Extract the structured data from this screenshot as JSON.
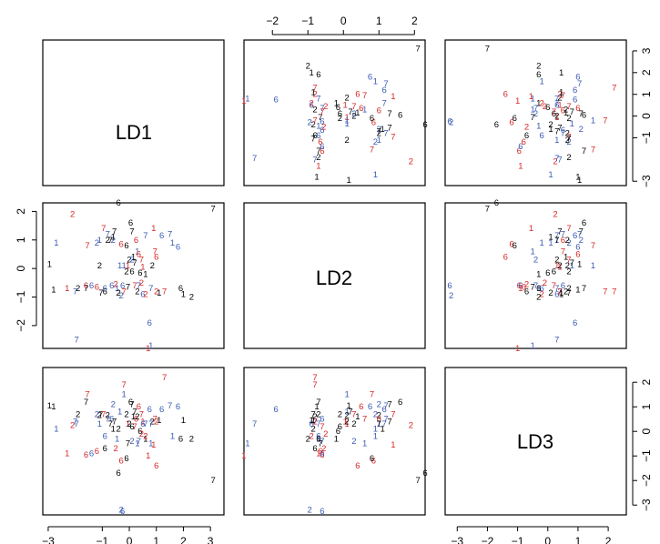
{
  "chart_data": {
    "type": "scatter",
    "variables": [
      "LD1",
      "LD2",
      "LD3"
    ],
    "colors": {
      "1": "#000000",
      "2": "#d62728",
      "3": "#3b5bb3"
    },
    "tick_labels": {
      "bottom_left": [
        "−3",
        "−1",
        "0",
        "1",
        "2",
        "3"
      ],
      "bottom_right": [
        "−3",
        "−2",
        "−1",
        "0",
        "1",
        "2"
      ],
      "top_middle": [
        "−2",
        "−1",
        "0",
        "1",
        "2"
      ],
      "left_middle": [
        "−2",
        "−1",
        "0",
        "1",
        "2"
      ],
      "right_top": [
        "−3",
        "−1",
        "0",
        "1",
        "2",
        "3"
      ],
      "right_bottom": [
        "−3",
        "−2",
        "−1",
        "0",
        "1",
        "2"
      ]
    },
    "ranges": {
      "LD1": [
        -3.2,
        3.5
      ],
      "LD2": [
        -2.8,
        2.3
      ],
      "LD3": [
        -3.4,
        2.6
      ]
    },
    "points": [
      {
        "label": "1",
        "c": 1,
        "LD1": -2.95,
        "LD2": 0.15,
        "LD3": 1.05
      },
      {
        "label": "1",
        "c": 1,
        "LD1": -2.8,
        "LD2": -0.75,
        "LD3": 1.0
      },
      {
        "label": "1",
        "c": 2,
        "LD1": -2.3,
        "LD2": -0.7,
        "LD3": -0.9
      },
      {
        "label": "1",
        "c": 3,
        "LD1": -2.7,
        "LD2": 0.9,
        "LD3": 0.1
      },
      {
        "label": "2",
        "c": 2,
        "LD1": -2.1,
        "LD2": 1.9,
        "LD3": 0.25
      },
      {
        "label": "2",
        "c": 1,
        "LD1": -1.9,
        "LD2": -0.7,
        "LD3": 0.7
      },
      {
        "label": "7",
        "c": 3,
        "LD1": -1.95,
        "LD2": -2.5,
        "LD3": 0.3
      },
      {
        "label": "7",
        "c": 3,
        "LD1": -2.0,
        "LD2": -0.8,
        "LD3": 0.4
      },
      {
        "label": "6",
        "c": 2,
        "LD1": -1.6,
        "LD2": -0.6,
        "LD3": -0.95
      },
      {
        "label": "6",
        "c": 3,
        "LD1": -1.4,
        "LD2": -0.6,
        "LD3": -0.9
      },
      {
        "label": "2",
        "c": 3,
        "LD1": -1.2,
        "LD2": 0.9,
        "LD3": 0.7
      },
      {
        "label": "7",
        "c": 2,
        "LD1": -1.55,
        "LD2": 0.8,
        "LD3": 1.5
      },
      {
        "label": "1",
        "c": 3,
        "LD1": -1.1,
        "LD2": 1.0,
        "LD3": 0.3
      },
      {
        "label": "7",
        "c": 1,
        "LD1": -1.05,
        "LD2": -0.85,
        "LD3": 0.7
      },
      {
        "label": "6",
        "c": 1,
        "LD1": -0.9,
        "LD2": -0.8,
        "LD3": -0.7
      },
      {
        "label": "7",
        "c": 2,
        "LD1": -0.95,
        "LD2": 1.4,
        "LD3": 0.7
      },
      {
        "label": "7",
        "c": 3,
        "LD1": -0.8,
        "LD2": 1.2,
        "LD3": 0.5
      },
      {
        "label": "2",
        "c": 1,
        "LD1": -0.8,
        "LD2": 1.0,
        "LD3": 0.65
      },
      {
        "label": "1",
        "c": 1,
        "LD1": -0.6,
        "LD2": 1.1,
        "LD3": 0.1
      },
      {
        "label": "6",
        "c": 3,
        "LD1": -0.65,
        "LD2": -0.6,
        "LD3": 0.5
      },
      {
        "label": "2",
        "c": 3,
        "LD1": -0.6,
        "LD2": 1.0,
        "LD3": 1.1
      },
      {
        "label": "6",
        "c": 3,
        "LD1": -0.9,
        "LD2": -0.7,
        "LD3": -0.2
      },
      {
        "label": "2",
        "c": 2,
        "LD1": -0.5,
        "LD2": -0.55,
        "LD3": -0.7
      },
      {
        "label": "1",
        "c": 3,
        "LD1": -0.45,
        "LD2": -0.7,
        "LD3": -0.3
      },
      {
        "label": "6",
        "c": 1,
        "LD1": -0.4,
        "LD2": 2.3,
        "LD3": -1.7
      },
      {
        "label": "2",
        "c": 1,
        "LD1": -0.4,
        "LD2": -0.85,
        "LD3": 0.1
      },
      {
        "label": "7",
        "c": 1,
        "LD1": -0.55,
        "LD2": 1.3,
        "LD3": 0.4
      },
      {
        "label": "1",
        "c": 3,
        "LD1": -0.35,
        "LD2": 0.1,
        "LD3": 0.8
      },
      {
        "label": "2",
        "c": 3,
        "LD1": -0.3,
        "LD2": -0.95,
        "LD3": -3.2
      },
      {
        "label": "6",
        "c": 3,
        "LD1": -0.25,
        "LD2": -0.6,
        "LD3": -3.25
      },
      {
        "label": "7",
        "c": 2,
        "LD1": -0.2,
        "LD2": -0.8,
        "LD3": 1.9
      },
      {
        "label": "6",
        "c": 2,
        "LD1": -0.3,
        "LD2": 0.85,
        "LD3": -1.2
      },
      {
        "label": "6",
        "c": 1,
        "LD1": -0.1,
        "LD2": 0.8,
        "LD3": -1.1
      },
      {
        "label": "7",
        "c": 1,
        "LD1": -0.05,
        "LD2": -0.65,
        "LD3": -0.5
      },
      {
        "label": "2",
        "c": 1,
        "LD1": -0.1,
        "LD2": -0.1,
        "LD3": 0.7
      },
      {
        "label": "1",
        "c": 2,
        "LD1": -0.05,
        "LD2": 0.1,
        "LD3": 0.3
      },
      {
        "label": "6",
        "c": 1,
        "LD1": 0.05,
        "LD2": 1.6,
        "LD3": 1.2
      },
      {
        "label": "7",
        "c": 1,
        "LD1": 0.1,
        "LD2": 1.3,
        "LD3": 1.1
      },
      {
        "label": "2",
        "c": 1,
        "LD1": 0.0,
        "LD2": 0.3,
        "LD3": 0.3
      },
      {
        "label": "1",
        "c": 1,
        "LD1": 0.15,
        "LD2": 0.4,
        "LD3": 0.6
      },
      {
        "label": "6",
        "c": 1,
        "LD1": 0.1,
        "LD2": -0.1,
        "LD3": 0.2
      },
      {
        "label": "7",
        "c": 1,
        "LD1": 0.2,
        "LD2": 0.2,
        "LD3": 0.8
      },
      {
        "label": "7",
        "c": 2,
        "LD1": 0.2,
        "LD2": -0.6,
        "LD3": 0.2
      },
      {
        "label": "6",
        "c": 2,
        "LD1": 0.25,
        "LD2": 1.0,
        "LD3": 0.5
      },
      {
        "label": "1",
        "c": 3,
        "LD1": 0.3,
        "LD2": 0.6,
        "LD3": -0.5
      },
      {
        "label": "2",
        "c": 1,
        "LD1": 0.3,
        "LD2": -0.8,
        "LD3": 0.6
      },
      {
        "label": "7",
        "c": 3,
        "LD1": 0.35,
        "LD2": -0.6,
        "LD3": -0.4
      },
      {
        "label": "6",
        "c": 1,
        "LD1": 0.4,
        "LD2": -0.15,
        "LD3": 0.0
      },
      {
        "label": "2",
        "c": 2,
        "LD1": 0.45,
        "LD2": -0.5,
        "LD3": -0.1
      },
      {
        "label": "7",
        "c": 2,
        "LD1": 0.45,
        "LD2": 0.3,
        "LD3": 0.7
      },
      {
        "label": "1",
        "c": 2,
        "LD1": 0.5,
        "LD2": 0.05,
        "LD3": 0.4
      },
      {
        "label": "6",
        "c": 3,
        "LD1": 0.5,
        "LD2": -0.9,
        "LD3": 0.3
      },
      {
        "label": "6",
        "c": 2,
        "LD1": 0.35,
        "LD2": 0.5,
        "LD3": 1.0
      },
      {
        "label": "1",
        "c": 1,
        "LD1": 0.6,
        "LD2": -0.2,
        "LD3": -0.3
      },
      {
        "label": "2",
        "c": 2,
        "LD1": 0.6,
        "LD2": -0.9,
        "LD3": -0.2
      },
      {
        "label": "7",
        "c": 3,
        "LD1": 0.6,
        "LD2": 1.15,
        "LD3": 0.3
      },
      {
        "label": "1",
        "c": 2,
        "LD1": 0.7,
        "LD2": -2.8,
        "LD3": -1.0
      },
      {
        "label": "6",
        "c": 3,
        "LD1": 0.75,
        "LD2": -1.9,
        "LD3": 0.9
      },
      {
        "label": "1",
        "c": 3,
        "LD1": 0.8,
        "LD2": -2.7,
        "LD3": -0.5
      },
      {
        "label": "2",
        "c": 1,
        "LD1": 0.85,
        "LD2": 0.1,
        "LD3": 0.4
      },
      {
        "label": "1",
        "c": 2,
        "LD1": 0.9,
        "LD2": 1.4,
        "LD3": -0.55
      },
      {
        "label": "7",
        "c": 2,
        "LD1": 0.95,
        "LD2": 0.6,
        "LD3": 0.5
      },
      {
        "label": "6",
        "c": 2,
        "LD1": 1.0,
        "LD2": 0.4,
        "LD3": -1.4
      },
      {
        "label": "2",
        "c": 2,
        "LD1": 1.0,
        "LD2": -0.8,
        "LD3": 0.4
      },
      {
        "label": "1",
        "c": 1,
        "LD1": 1.1,
        "LD2": -0.85,
        "LD3": 0.45
      },
      {
        "label": "6",
        "c": 3,
        "LD1": 1.2,
        "LD2": 1.15,
        "LD3": 0.9
      },
      {
        "label": "7",
        "c": 3,
        "LD1": 1.5,
        "LD2": 1.2,
        "LD3": 1.05
      },
      {
        "label": "1",
        "c": 3,
        "LD1": 1.6,
        "LD2": 0.9,
        "LD3": -0.2
      },
      {
        "label": "7",
        "c": 2,
        "LD1": 1.3,
        "LD2": -0.8,
        "LD3": 2.2
      },
      {
        "label": "6",
        "c": 3,
        "LD1": 1.8,
        "LD2": 0.75,
        "LD3": 1.0
      },
      {
        "label": "2",
        "c": 1,
        "LD1": 2.3,
        "LD2": -1.0,
        "LD3": -0.3
      },
      {
        "label": "1",
        "c": 1,
        "LD1": 2.0,
        "LD2": -0.9,
        "LD3": 0.45
      },
      {
        "label": "7",
        "c": 1,
        "LD1": 3.1,
        "LD2": 2.1,
        "LD3": -2.0
      },
      {
        "label": "6",
        "c": 1,
        "LD1": 1.9,
        "LD2": -0.7,
        "LD3": -0.3
      },
      {
        "label": "7",
        "c": 1,
        "LD1": -1.6,
        "LD2": -0.7,
        "LD3": 1.2
      },
      {
        "label": "2",
        "c": 1,
        "LD1": -1.1,
        "LD2": 0.1,
        "LD3": 0.65
      },
      {
        "label": "7",
        "c": 1,
        "LD1": -0.7,
        "LD2": 1.0,
        "LD3": 0.3
      },
      {
        "label": "6",
        "c": 2,
        "LD1": -1.2,
        "LD2": -0.65,
        "LD3": -0.8
      },
      {
        "label": "1",
        "c": 3,
        "LD1": -0.2,
        "LD2": 0.1,
        "LD3": 1.5
      },
      {
        "label": "2",
        "c": 3,
        "LD1": 0.1,
        "LD2": 0.3,
        "LD3": -0.4
      },
      {
        "label": "7",
        "c": 3,
        "LD1": 0.8,
        "LD2": -0.7,
        "LD3": 0.3
      }
    ]
  },
  "panels": {
    "diag_1": "LD1",
    "diag_2": "LD2",
    "diag_3": "LD3"
  }
}
